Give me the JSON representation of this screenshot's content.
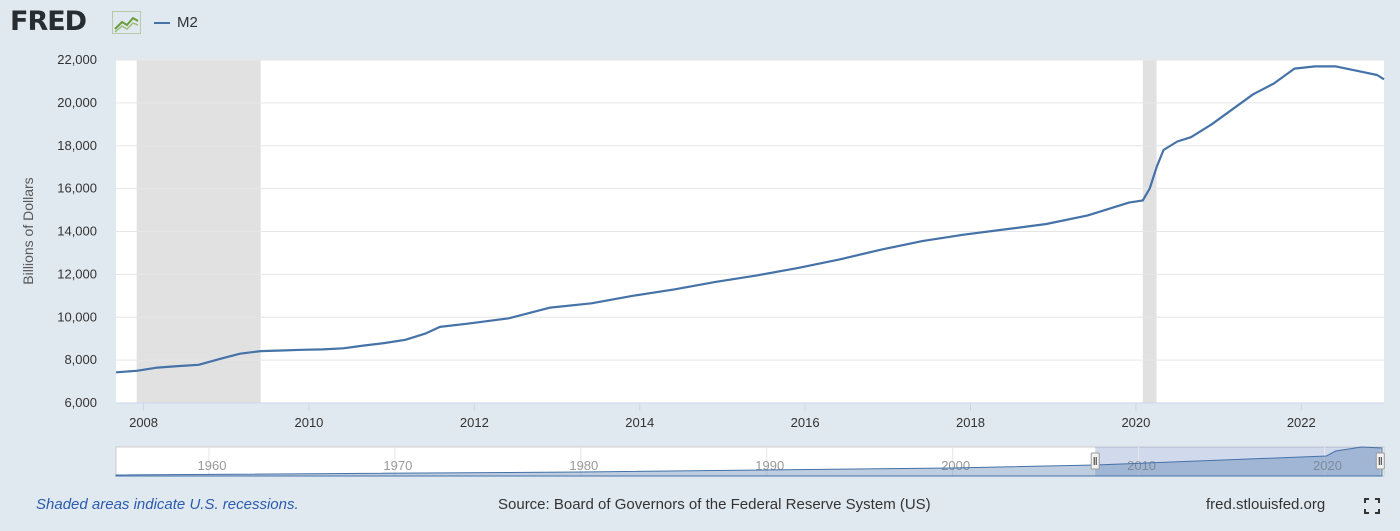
{
  "header": {
    "logo_text": "FRED",
    "legend_label": "M2"
  },
  "colors": {
    "series": "#4572a7",
    "recession": "#e1e1e1",
    "background": "#e1e9f0",
    "plot_bg": "#ffffff"
  },
  "footer": {
    "note": "Shaded areas indicate U.S. recessions.",
    "source": "Source: Board of Governors of the Federal Reserve System (US)",
    "url": "fred.stlouisfed.org"
  },
  "chart_data": {
    "type": "line",
    "title": "",
    "xlabel": "",
    "ylabel": "Billions of Dollars",
    "ylim": [
      6000,
      22000
    ],
    "xlim": [
      "2007-09",
      "2023-01"
    ],
    "yticks": [
      "6,000",
      "8,000",
      "10,000",
      "12,000",
      "14,000",
      "16,000",
      "18,000",
      "20,000",
      "22,000"
    ],
    "xticks": [
      "2008",
      "2010",
      "2012",
      "2014",
      "2016",
      "2018",
      "2020",
      "2022"
    ],
    "grid": true,
    "legend": "top-left",
    "recessions": [
      {
        "start": "2007-12",
        "end": "2009-06"
      },
      {
        "start": "2020-02",
        "end": "2020-04"
      }
    ],
    "series": [
      {
        "name": "M2",
        "points": [
          [
            "2007-09",
            7430
          ],
          [
            "2007-12",
            7500
          ],
          [
            "2008-03",
            7650
          ],
          [
            "2008-06",
            7720
          ],
          [
            "2008-09",
            7780
          ],
          [
            "2008-12",
            8050
          ],
          [
            "2009-03",
            8300
          ],
          [
            "2009-06",
            8420
          ],
          [
            "2009-09",
            8450
          ],
          [
            "2009-12",
            8480
          ],
          [
            "2010-03",
            8500
          ],
          [
            "2010-06",
            8550
          ],
          [
            "2010-09",
            8680
          ],
          [
            "2010-12",
            8800
          ],
          [
            "2011-03",
            8950
          ],
          [
            "2011-06",
            9250
          ],
          [
            "2011-08",
            9550
          ],
          [
            "2011-12",
            9700
          ],
          [
            "2012-06",
            9950
          ],
          [
            "2012-12",
            10450
          ],
          [
            "2013-06",
            10650
          ],
          [
            "2013-12",
            11000
          ],
          [
            "2014-06",
            11300
          ],
          [
            "2014-12",
            11650
          ],
          [
            "2015-06",
            11950
          ],
          [
            "2015-12",
            12300
          ],
          [
            "2016-06",
            12700
          ],
          [
            "2016-12",
            13150
          ],
          [
            "2017-06",
            13550
          ],
          [
            "2017-12",
            13850
          ],
          [
            "2018-06",
            14100
          ],
          [
            "2018-12",
            14350
          ],
          [
            "2019-06",
            14750
          ],
          [
            "2019-12",
            15350
          ],
          [
            "2020-02",
            15450
          ],
          [
            "2020-03",
            16000
          ],
          [
            "2020-04",
            17000
          ],
          [
            "2020-05",
            17800
          ],
          [
            "2020-07",
            18200
          ],
          [
            "2020-09",
            18400
          ],
          [
            "2020-12",
            19000
          ],
          [
            "2021-03",
            19700
          ],
          [
            "2021-06",
            20400
          ],
          [
            "2021-09",
            20900
          ],
          [
            "2021-12",
            21600
          ],
          [
            "2022-03",
            21700
          ],
          [
            "2022-06",
            21700
          ],
          [
            "2022-09",
            21500
          ],
          [
            "2022-12",
            21300
          ],
          [
            "2023-01",
            21100
          ]
        ]
      }
    ],
    "navigator": {
      "ticks": [
        "1960",
        "1970",
        "1980",
        "1990",
        "2000",
        "2010",
        "2020"
      ],
      "xlim": [
        1955,
        2023.2
      ],
      "selection": [
        "2007-09",
        "2023-01"
      ]
    }
  }
}
